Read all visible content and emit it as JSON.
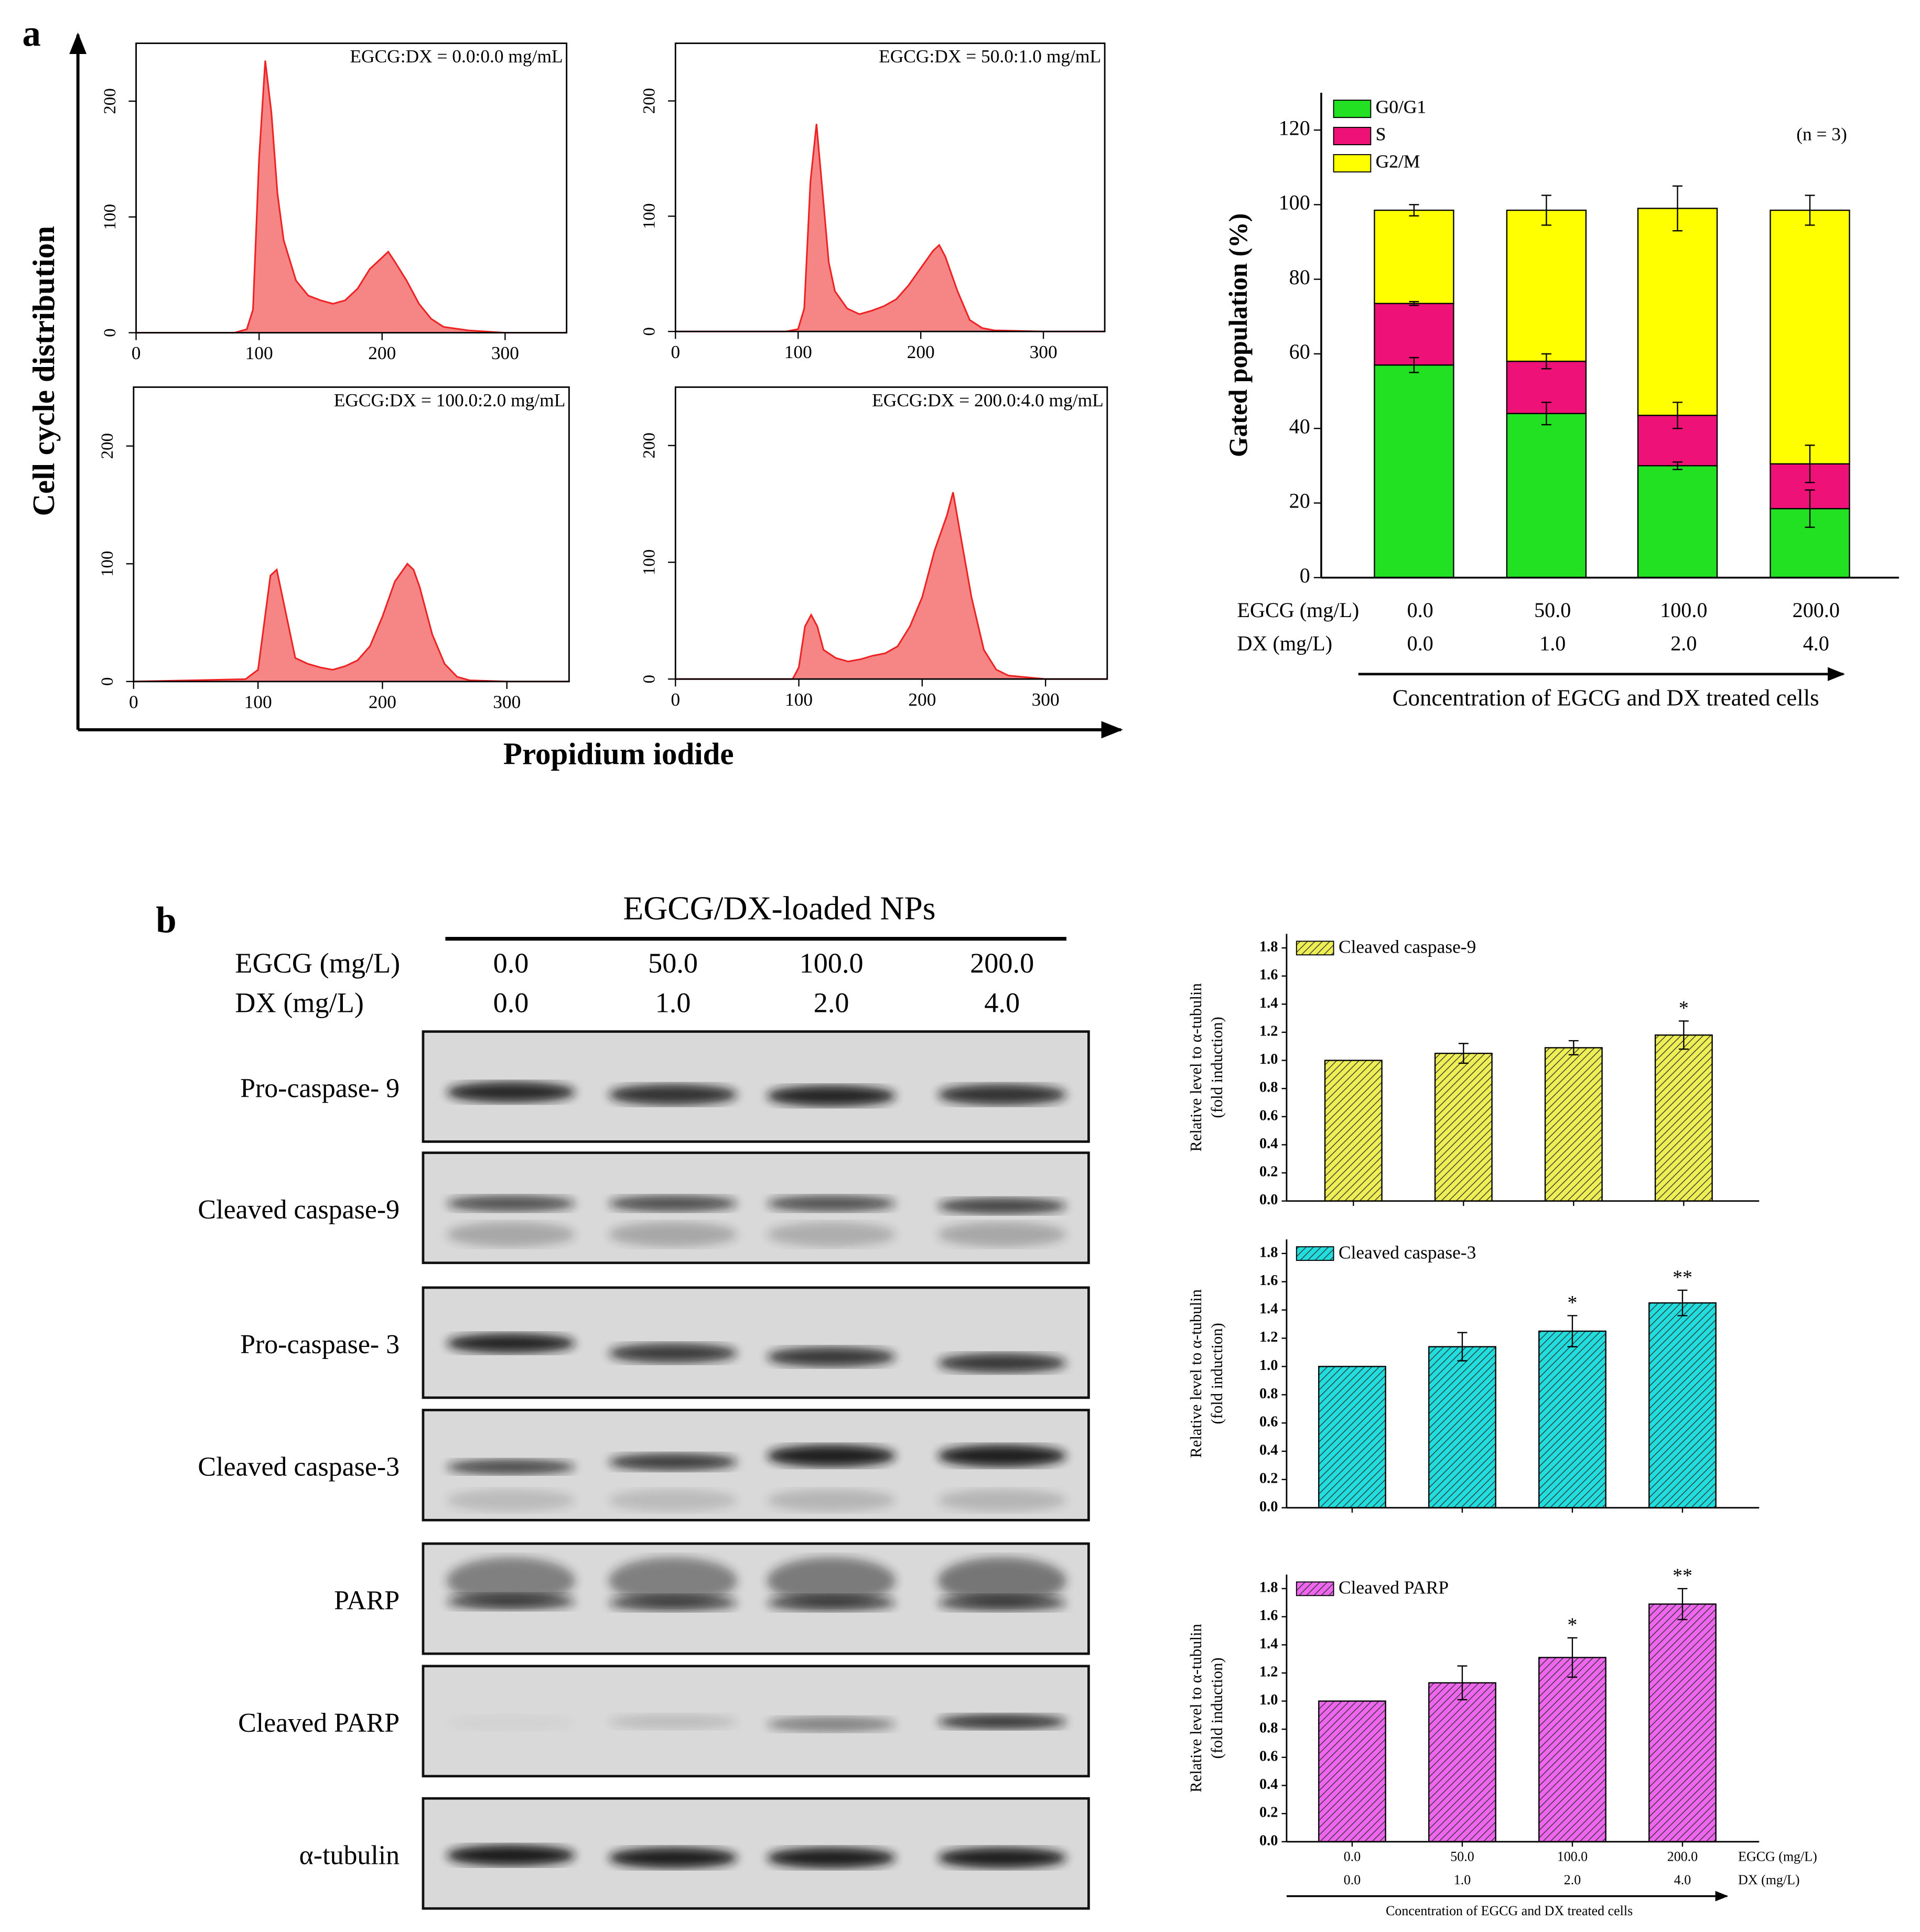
{
  "panel_a": {
    "label": "a",
    "ylabel": "Cell cycle distribution",
    "xlabel": "Propidium iodide"
  },
  "chart_data": [
    {
      "type": "area",
      "title": "EGCG:DX = 0.0:0.0 mg/mL",
      "x": [
        0,
        80,
        90,
        95,
        100,
        105,
        110,
        115,
        120,
        130,
        140,
        150,
        160,
        170,
        180,
        190,
        200,
        205,
        210,
        220,
        230,
        240,
        250,
        270,
        300,
        350
      ],
      "values": [
        0,
        0,
        3,
        20,
        150,
        235,
        190,
        120,
        80,
        45,
        32,
        28,
        25,
        28,
        38,
        55,
        65,
        70,
        62,
        45,
        25,
        12,
        5,
        2,
        0,
        0
      ],
      "color": "#ee2222",
      "xlim": [
        0,
        350
      ],
      "xticks": [
        0,
        100,
        200,
        300
      ],
      "ylim": [
        0,
        250
      ],
      "yticks": [
        0,
        100,
        200
      ]
    },
    {
      "type": "area",
      "title": "EGCG:DX = 50.0:1.0 mg/mL",
      "x": [
        0,
        90,
        100,
        105,
        110,
        115,
        120,
        125,
        130,
        140,
        150,
        160,
        170,
        180,
        190,
        200,
        210,
        215,
        220,
        230,
        240,
        250,
        260,
        300,
        350
      ],
      "values": [
        0,
        0,
        2,
        20,
        130,
        180,
        120,
        60,
        35,
        20,
        15,
        18,
        22,
        28,
        40,
        55,
        70,
        75,
        65,
        35,
        10,
        3,
        1,
        0,
        0
      ],
      "color": "#ee2222",
      "xlim": [
        0,
        350
      ],
      "xticks": [
        0,
        100,
        200,
        300
      ],
      "ylim": [
        0,
        250
      ],
      "yticks": [
        0,
        100,
        200
      ]
    },
    {
      "type": "area",
      "title": "EGCG:DX = 100.0:2.0 mg/mL",
      "x": [
        0,
        90,
        100,
        105,
        110,
        115,
        120,
        130,
        140,
        150,
        160,
        170,
        180,
        190,
        200,
        210,
        220,
        225,
        230,
        240,
        250,
        260,
        270,
        300,
        350
      ],
      "values": [
        0,
        2,
        10,
        50,
        90,
        95,
        70,
        20,
        15,
        12,
        10,
        13,
        18,
        30,
        55,
        85,
        100,
        95,
        80,
        40,
        15,
        4,
        1,
        0,
        0
      ],
      "color": "#ee2222",
      "xlim": [
        0,
        350
      ],
      "xticks": [
        0,
        100,
        200,
        300
      ],
      "ylim": [
        0,
        250
      ],
      "yticks": [
        0,
        100,
        200
      ]
    },
    {
      "type": "area",
      "title": "EGCG:DX = 200.0:4.0 mg/mL",
      "x": [
        0,
        95,
        100,
        105,
        110,
        115,
        120,
        130,
        140,
        150,
        160,
        170,
        180,
        190,
        200,
        210,
        220,
        225,
        230,
        240,
        250,
        260,
        270,
        300,
        350
      ],
      "values": [
        0,
        0,
        10,
        45,
        55,
        45,
        25,
        18,
        15,
        17,
        20,
        22,
        28,
        45,
        70,
        110,
        140,
        160,
        130,
        70,
        25,
        8,
        3,
        0,
        0
      ],
      "color": "#ee2222",
      "xlim": [
        0,
        350
      ],
      "xticks": [
        0,
        100,
        200,
        300
      ],
      "ylim": [
        0,
        250
      ],
      "yticks": [
        0,
        100,
        200
      ]
    },
    {
      "type": "stacked_bar",
      "ylabel": "Gated population (%)",
      "xlabel": "Concentration of EGCG and DX treated cells",
      "annotation": "(n = 3)",
      "legend": "upper left",
      "category_rows": [
        {
          "label": "EGCG (mg/L)",
          "values": [
            "0.0",
            "50.0",
            "100.0",
            "200.0"
          ]
        },
        {
          "label": "DX (mg/L)",
          "values": [
            "0.0",
            "1.0",
            "2.0",
            "4.0"
          ]
        }
      ],
      "ylim": [
        0,
        130
      ],
      "yticks": [
        0,
        20,
        40,
        60,
        80,
        100,
        120
      ],
      "series": [
        {
          "name": "G0/G1",
          "color": "#22e022",
          "values": [
            57,
            44,
            30,
            18.5
          ],
          "errors": [
            2,
            3,
            1,
            5
          ]
        },
        {
          "name": "S",
          "color": "#ee1177",
          "values": [
            16.5,
            14,
            13.5,
            12
          ],
          "errors": [
            0.5,
            2,
            3.5,
            5
          ]
        },
        {
          "name": "G2/M",
          "color": "#ffff00",
          "values": [
            25,
            40.5,
            55.5,
            68
          ],
          "errors": [
            1.5,
            4,
            6,
            4
          ]
        }
      ]
    },
    {
      "type": "bar",
      "hatch": true,
      "ylabel": [
        "Relative level to α-tubulin",
        "(fold induction)"
      ],
      "ylim": [
        0,
        1.9
      ],
      "yticks": [
        {
          "value": 0,
          "label": "0.0"
        },
        0.2,
        0.4,
        0.6,
        0.8,
        {
          "value": 1,
          "label": "1.0"
        },
        1.2,
        1.4,
        1.6,
        1.8
      ],
      "series": [
        {
          "name": "Cleaved caspase-9",
          "color": "#eeee55",
          "values": [
            1.0,
            1.05,
            1.09,
            1.18
          ],
          "errors": [
            0,
            0.07,
            0.05,
            0.1
          ]
        }
      ],
      "significance": [
        null,
        null,
        null,
        "*"
      ]
    },
    {
      "type": "bar",
      "hatch": true,
      "ylabel": [
        "Relative level to α-tubulin",
        "(fold induction)"
      ],
      "ylim": [
        0,
        1.9
      ],
      "yticks": [
        {
          "value": 0,
          "label": "0.0"
        },
        0.2,
        0.4,
        0.6,
        0.8,
        {
          "value": 1,
          "label": "1.0"
        },
        1.2,
        1.4,
        1.6,
        1.8
      ],
      "series": [
        {
          "name": "Cleaved caspase-3",
          "color": "#22dddd",
          "values": [
            1.0,
            1.14,
            1.25,
            1.45
          ],
          "errors": [
            0,
            0.1,
            0.11,
            0.09
          ]
        }
      ],
      "significance": [
        null,
        null,
        "*",
        "**"
      ]
    },
    {
      "type": "bar",
      "hatch": true,
      "ylabel": [
        "Relative level to α-tubulin",
        "(fold induction)"
      ],
      "xlabel": "Concentration of EGCG and DX treated cells",
      "category_rows": [
        {
          "label": "EGCG (mg/L)",
          "values": [
            "0.0",
            "50.0",
            "100.0",
            "200.0"
          ]
        },
        {
          "label": "DX (mg/L)",
          "values": [
            "0.0",
            "1.0",
            "2.0",
            "4.0"
          ]
        }
      ],
      "ylim": [
        0,
        1.9
      ],
      "yticks": [
        {
          "value": 0,
          "label": "0.0"
        },
        0.2,
        0.4,
        0.6,
        0.8,
        {
          "value": 1,
          "label": "1.0"
        },
        1.2,
        1.4,
        1.6,
        1.8
      ],
      "series": [
        {
          "name": "Cleaved PARP",
          "color": "#ee66ee",
          "values": [
            1.0,
            1.13,
            1.31,
            1.69
          ],
          "errors": [
            0,
            0.12,
            0.14,
            0.11
          ]
        }
      ],
      "significance": [
        null,
        null,
        "*",
        "**"
      ]
    }
  ],
  "blot": {
    "label": "b",
    "group": "EGCG/DX-loaded NPs",
    "rows": [
      {
        "label": "EGCG (mg/L)",
        "values": [
          "0.0",
          "50.0",
          "100.0",
          "200.0"
        ]
      },
      {
        "label": "DX (mg/L)",
        "values": [
          "0.0",
          "1.0",
          "2.0",
          "4.0"
        ]
      }
    ],
    "bands": [
      "Pro-caspase- 9",
      "Cleaved caspase-9",
      "Pro-caspase- 3",
      "Cleaved caspase-3",
      "PARP",
      "Cleaved PARP",
      "α-tubulin"
    ]
  }
}
